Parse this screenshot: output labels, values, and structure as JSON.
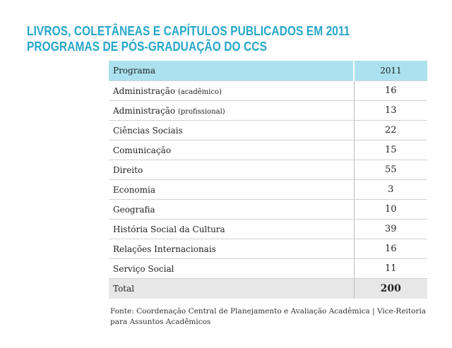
{
  "title": {
    "line1": "LIVROS, COLETÂNEAS E CAPÍTULOS PUBLICADOS EM 2011",
    "line2": "PROGRAMAS DE PÓS-GRADUAÇÃO DO CCS"
  },
  "table": {
    "header": {
      "program": "Programa",
      "year": "2011"
    },
    "rows": [
      {
        "name": "Administração",
        "qualifier": "(acadêmico)",
        "value": "16"
      },
      {
        "name": "Administração",
        "qualifier": "(profissional)",
        "value": "13"
      },
      {
        "name": "Ciências Sociais",
        "qualifier": "",
        "value": "22"
      },
      {
        "name": "Comunicação",
        "qualifier": "",
        "value": "15"
      },
      {
        "name": "Direito",
        "qualifier": "",
        "value": "55"
      },
      {
        "name": "Economia",
        "qualifier": "",
        "value": "3"
      },
      {
        "name": "Geografia",
        "qualifier": "",
        "value": "10"
      },
      {
        "name": "História Social da Cultura",
        "qualifier": "",
        "value": "39"
      },
      {
        "name": "Relações Internacionais",
        "qualifier": "",
        "value": "16"
      },
      {
        "name": "Serviço Social",
        "qualifier": "",
        "value": "11"
      }
    ],
    "total": {
      "label": "Total",
      "value": "200"
    }
  },
  "source": {
    "line1": "Fonte: Coordenação Central de Planejamento e Avaliação Acadêmica | Vice-Reitoria",
    "line2": "para Assuntos Acadêmicos"
  }
}
